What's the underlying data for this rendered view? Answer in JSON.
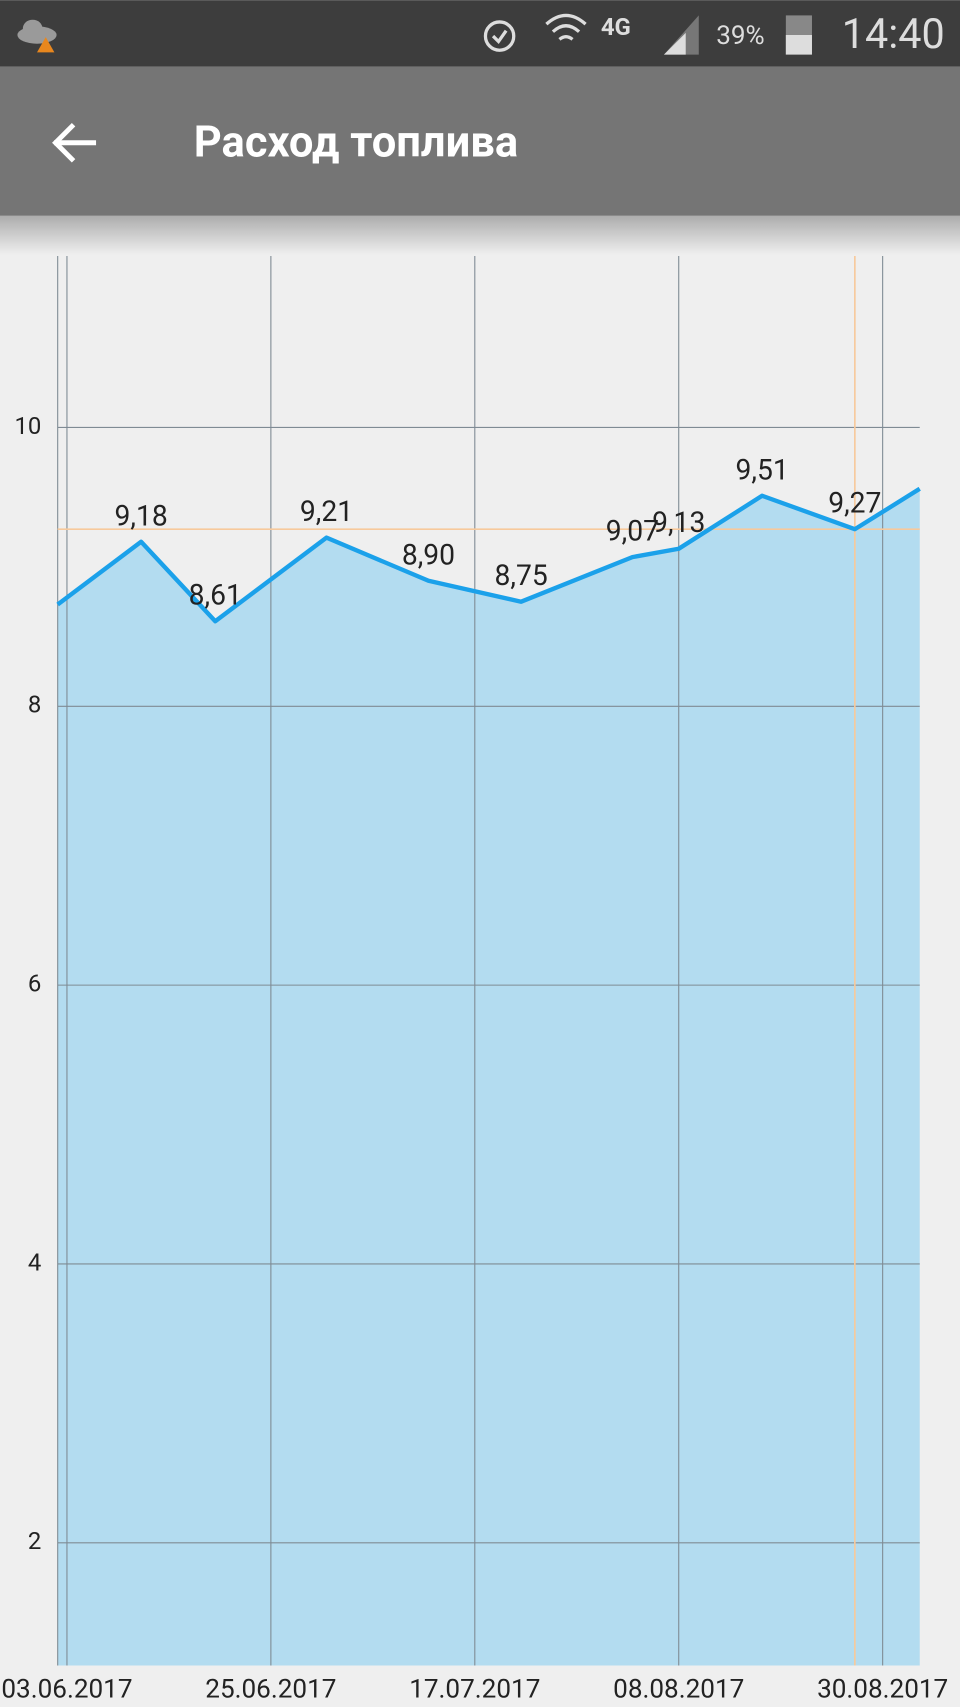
{
  "status_bar": {
    "network": "4G",
    "battery": "39%",
    "time": "14:40"
  },
  "toolbar": {
    "title": "Расход топлива"
  },
  "chart_data": {
    "type": "area",
    "x": [
      "02.06.2017",
      "11.06.2017",
      "19.06.2017",
      "01.07.2017",
      "12.07.2017",
      "22.07.2017",
      "03.08.2017",
      "08.08.2017",
      "17.08.2017",
      "27.08.2017",
      "03.09.2017"
    ],
    "values": [
      8.73,
      9.18,
      8.61,
      9.21,
      8.9,
      8.75,
      9.07,
      9.13,
      9.51,
      9.27,
      9.56
    ],
    "value_labels": [
      null,
      "9,18",
      "8,61",
      "9,21",
      "8,90",
      "8,75",
      "9,07",
      "9,13",
      "9,51",
      "9,27",
      null
    ],
    "xlim": [
      "02.06.2017",
      "03.09.2017"
    ],
    "xticks": [
      "03.06.2017",
      "25.06.2017",
      "17.07.2017",
      "08.08.2017",
      "30.08.2017"
    ],
    "ylim": [
      1.12,
      11.23
    ],
    "yticks": [
      2,
      4,
      6,
      8,
      10
    ],
    "grid": true,
    "color": "#1ba1ea",
    "fill_color": "#b3dcf0",
    "highlight_index": 9,
    "highlight_color": "#f7c99c"
  }
}
